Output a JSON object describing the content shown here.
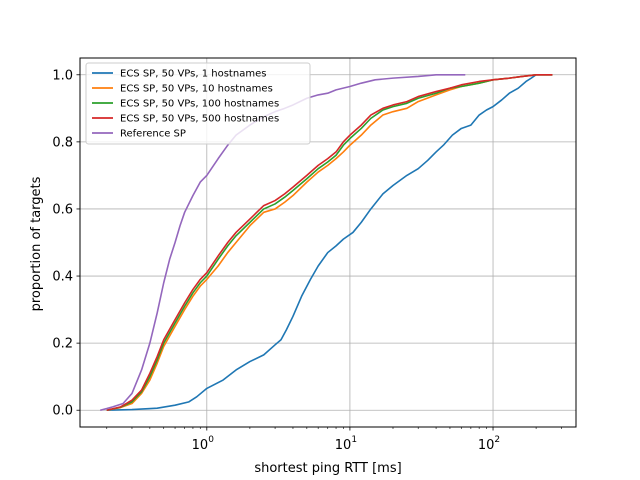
{
  "chart_data": {
    "type": "line",
    "title": "",
    "xlabel": "shortest ping RTT [ms]",
    "ylabel": "proportion of targets",
    "xscale": "log",
    "xlim": [
      0.13,
      380
    ],
    "ylim": [
      -0.05,
      1.05
    ],
    "grid": true,
    "legend_position": "top-left",
    "x_ticks": [
      {
        "value": 1,
        "base": "10",
        "exp": "0"
      },
      {
        "value": 10,
        "base": "10",
        "exp": "1"
      },
      {
        "value": 100,
        "base": "10",
        "exp": "2"
      }
    ],
    "y_ticks": [
      {
        "value": 0.0,
        "label": "0.0"
      },
      {
        "value": 0.2,
        "label": "0.2"
      },
      {
        "value": 0.4,
        "label": "0.4"
      },
      {
        "value": 0.6,
        "label": "0.6"
      },
      {
        "value": 0.8,
        "label": "0.8"
      },
      {
        "value": 1.0,
        "label": "1.0"
      }
    ],
    "series": [
      {
        "name": "ECS SP, 50 VPs, 1 hostnames",
        "color": "#1f77b4",
        "points": [
          [
            0.2,
            0.0
          ],
          [
            0.3,
            0.002
          ],
          [
            0.45,
            0.006
          ],
          [
            0.6,
            0.015
          ],
          [
            0.75,
            0.025
          ],
          [
            0.85,
            0.04
          ],
          [
            1.0,
            0.065
          ],
          [
            1.3,
            0.09
          ],
          [
            1.6,
            0.12
          ],
          [
            2.0,
            0.145
          ],
          [
            2.5,
            0.165
          ],
          [
            3.0,
            0.195
          ],
          [
            3.3,
            0.21
          ],
          [
            3.6,
            0.24
          ],
          [
            4.0,
            0.28
          ],
          [
            4.6,
            0.34
          ],
          [
            5.3,
            0.39
          ],
          [
            6.0,
            0.43
          ],
          [
            7.0,
            0.47
          ],
          [
            8.0,
            0.49
          ],
          [
            9.0,
            0.51
          ],
          [
            10.5,
            0.53
          ],
          [
            12.0,
            0.56
          ],
          [
            14.0,
            0.6
          ],
          [
            17.0,
            0.645
          ],
          [
            20.0,
            0.67
          ],
          [
            25.0,
            0.7
          ],
          [
            30.0,
            0.72
          ],
          [
            35.0,
            0.745
          ],
          [
            40.0,
            0.77
          ],
          [
            45.0,
            0.79
          ],
          [
            52.0,
            0.82
          ],
          [
            60.0,
            0.84
          ],
          [
            70.0,
            0.85
          ],
          [
            80.0,
            0.88
          ],
          [
            90.0,
            0.895
          ],
          [
            100.0,
            0.905
          ],
          [
            115.0,
            0.925
          ],
          [
            130.0,
            0.945
          ],
          [
            150.0,
            0.96
          ],
          [
            170.0,
            0.98
          ],
          [
            185.0,
            0.99
          ],
          [
            200.0,
            1.0
          ],
          [
            260.0,
            1.0
          ]
        ]
      },
      {
        "name": "ECS SP, 50 VPs, 10 hostnames",
        "color": "#ff7f0e",
        "points": [
          [
            0.2,
            0.0
          ],
          [
            0.25,
            0.008
          ],
          [
            0.3,
            0.02
          ],
          [
            0.35,
            0.05
          ],
          [
            0.4,
            0.09
          ],
          [
            0.45,
            0.14
          ],
          [
            0.5,
            0.19
          ],
          [
            0.6,
            0.25
          ],
          [
            0.7,
            0.3
          ],
          [
            0.8,
            0.34
          ],
          [
            0.9,
            0.37
          ],
          [
            1.0,
            0.39
          ],
          [
            1.2,
            0.43
          ],
          [
            1.4,
            0.47
          ],
          [
            1.6,
            0.5
          ],
          [
            2.0,
            0.55
          ],
          [
            2.5,
            0.59
          ],
          [
            3.0,
            0.6
          ],
          [
            3.5,
            0.62
          ],
          [
            4.0,
            0.64
          ],
          [
            5.0,
            0.68
          ],
          [
            6.0,
            0.71
          ],
          [
            7.0,
            0.73
          ],
          [
            8.0,
            0.75
          ],
          [
            9.0,
            0.77
          ],
          [
            10.0,
            0.79
          ],
          [
            12.0,
            0.82
          ],
          [
            14.0,
            0.85
          ],
          [
            17.0,
            0.88
          ],
          [
            20.0,
            0.89
          ],
          [
            25.0,
            0.9
          ],
          [
            30.0,
            0.92
          ],
          [
            40.0,
            0.94
          ],
          [
            50.0,
            0.955
          ],
          [
            60.0,
            0.965
          ],
          [
            80.0,
            0.975
          ],
          [
            100.0,
            0.985
          ],
          [
            130.0,
            0.99
          ],
          [
            160.0,
            0.995
          ],
          [
            200.0,
            1.0
          ],
          [
            260.0,
            1.0
          ]
        ]
      },
      {
        "name": "ECS SP, 50 VPs, 100 hostnames",
        "color": "#2ca02c",
        "points": [
          [
            0.2,
            0.0
          ],
          [
            0.25,
            0.009
          ],
          [
            0.3,
            0.025
          ],
          [
            0.35,
            0.055
          ],
          [
            0.4,
            0.1
          ],
          [
            0.45,
            0.15
          ],
          [
            0.5,
            0.2
          ],
          [
            0.6,
            0.26
          ],
          [
            0.7,
            0.31
          ],
          [
            0.8,
            0.35
          ],
          [
            0.9,
            0.38
          ],
          [
            1.0,
            0.4
          ],
          [
            1.2,
            0.45
          ],
          [
            1.4,
            0.49
          ],
          [
            1.6,
            0.52
          ],
          [
            2.0,
            0.56
          ],
          [
            2.5,
            0.6
          ],
          [
            3.0,
            0.615
          ],
          [
            3.5,
            0.635
          ],
          [
            4.0,
            0.655
          ],
          [
            5.0,
            0.69
          ],
          [
            6.0,
            0.72
          ],
          [
            7.0,
            0.74
          ],
          [
            8.0,
            0.76
          ],
          [
            9.0,
            0.79
          ],
          [
            10.0,
            0.81
          ],
          [
            12.0,
            0.84
          ],
          [
            14.0,
            0.87
          ],
          [
            17.0,
            0.895
          ],
          [
            20.0,
            0.905
          ],
          [
            25.0,
            0.915
          ],
          [
            30.0,
            0.93
          ],
          [
            40.0,
            0.945
          ],
          [
            50.0,
            0.96
          ],
          [
            60.0,
            0.965
          ],
          [
            80.0,
            0.975
          ],
          [
            100.0,
            0.985
          ],
          [
            130.0,
            0.99
          ],
          [
            160.0,
            0.995
          ],
          [
            200.0,
            1.0
          ],
          [
            260.0,
            1.0
          ]
        ]
      },
      {
        "name": "ECS SP, 50 VPs, 500 hostnames",
        "color": "#d62728",
        "points": [
          [
            0.2,
            0.0
          ],
          [
            0.25,
            0.01
          ],
          [
            0.3,
            0.03
          ],
          [
            0.35,
            0.06
          ],
          [
            0.4,
            0.11
          ],
          [
            0.45,
            0.16
          ],
          [
            0.5,
            0.21
          ],
          [
            0.6,
            0.27
          ],
          [
            0.7,
            0.32
          ],
          [
            0.8,
            0.36
          ],
          [
            0.9,
            0.39
          ],
          [
            1.0,
            0.41
          ],
          [
            1.2,
            0.46
          ],
          [
            1.4,
            0.5
          ],
          [
            1.6,
            0.53
          ],
          [
            2.0,
            0.57
          ],
          [
            2.5,
            0.61
          ],
          [
            3.0,
            0.625
          ],
          [
            3.5,
            0.645
          ],
          [
            4.0,
            0.665
          ],
          [
            5.0,
            0.7
          ],
          [
            6.0,
            0.73
          ],
          [
            7.0,
            0.75
          ],
          [
            8.0,
            0.77
          ],
          [
            9.0,
            0.8
          ],
          [
            10.0,
            0.82
          ],
          [
            12.0,
            0.85
          ],
          [
            14.0,
            0.88
          ],
          [
            17.0,
            0.9
          ],
          [
            20.0,
            0.91
          ],
          [
            25.0,
            0.92
          ],
          [
            30.0,
            0.935
          ],
          [
            40.0,
            0.95
          ],
          [
            50.0,
            0.96
          ],
          [
            60.0,
            0.97
          ],
          [
            80.0,
            0.98
          ],
          [
            100.0,
            0.985
          ],
          [
            130.0,
            0.99
          ],
          [
            160.0,
            0.995
          ],
          [
            200.0,
            1.0
          ],
          [
            260.0,
            1.0
          ]
        ]
      },
      {
        "name": "Reference SP",
        "color": "#9467bd",
        "points": [
          [
            0.18,
            0.0
          ],
          [
            0.2,
            0.005
          ],
          [
            0.22,
            0.01
          ],
          [
            0.26,
            0.02
          ],
          [
            0.3,
            0.05
          ],
          [
            0.35,
            0.12
          ],
          [
            0.4,
            0.2
          ],
          [
            0.45,
            0.29
          ],
          [
            0.5,
            0.38
          ],
          [
            0.55,
            0.45
          ],
          [
            0.6,
            0.5
          ],
          [
            0.65,
            0.55
          ],
          [
            0.7,
            0.59
          ],
          [
            0.8,
            0.64
          ],
          [
            0.9,
            0.68
          ],
          [
            1.0,
            0.7
          ],
          [
            1.2,
            0.75
          ],
          [
            1.4,
            0.79
          ],
          [
            1.6,
            0.82
          ],
          [
            2.0,
            0.85
          ],
          [
            2.5,
            0.875
          ],
          [
            3.0,
            0.89
          ],
          [
            3.5,
            0.9
          ],
          [
            4.0,
            0.91
          ],
          [
            5.0,
            0.93
          ],
          [
            6.0,
            0.94
          ],
          [
            7.0,
            0.945
          ],
          [
            8.0,
            0.955
          ],
          [
            10.0,
            0.965
          ],
          [
            12.0,
            0.975
          ],
          [
            15.0,
            0.985
          ],
          [
            20.0,
            0.99
          ],
          [
            30.0,
            0.995
          ],
          [
            40.0,
            1.0
          ],
          [
            64.0,
            1.0
          ]
        ]
      }
    ]
  }
}
